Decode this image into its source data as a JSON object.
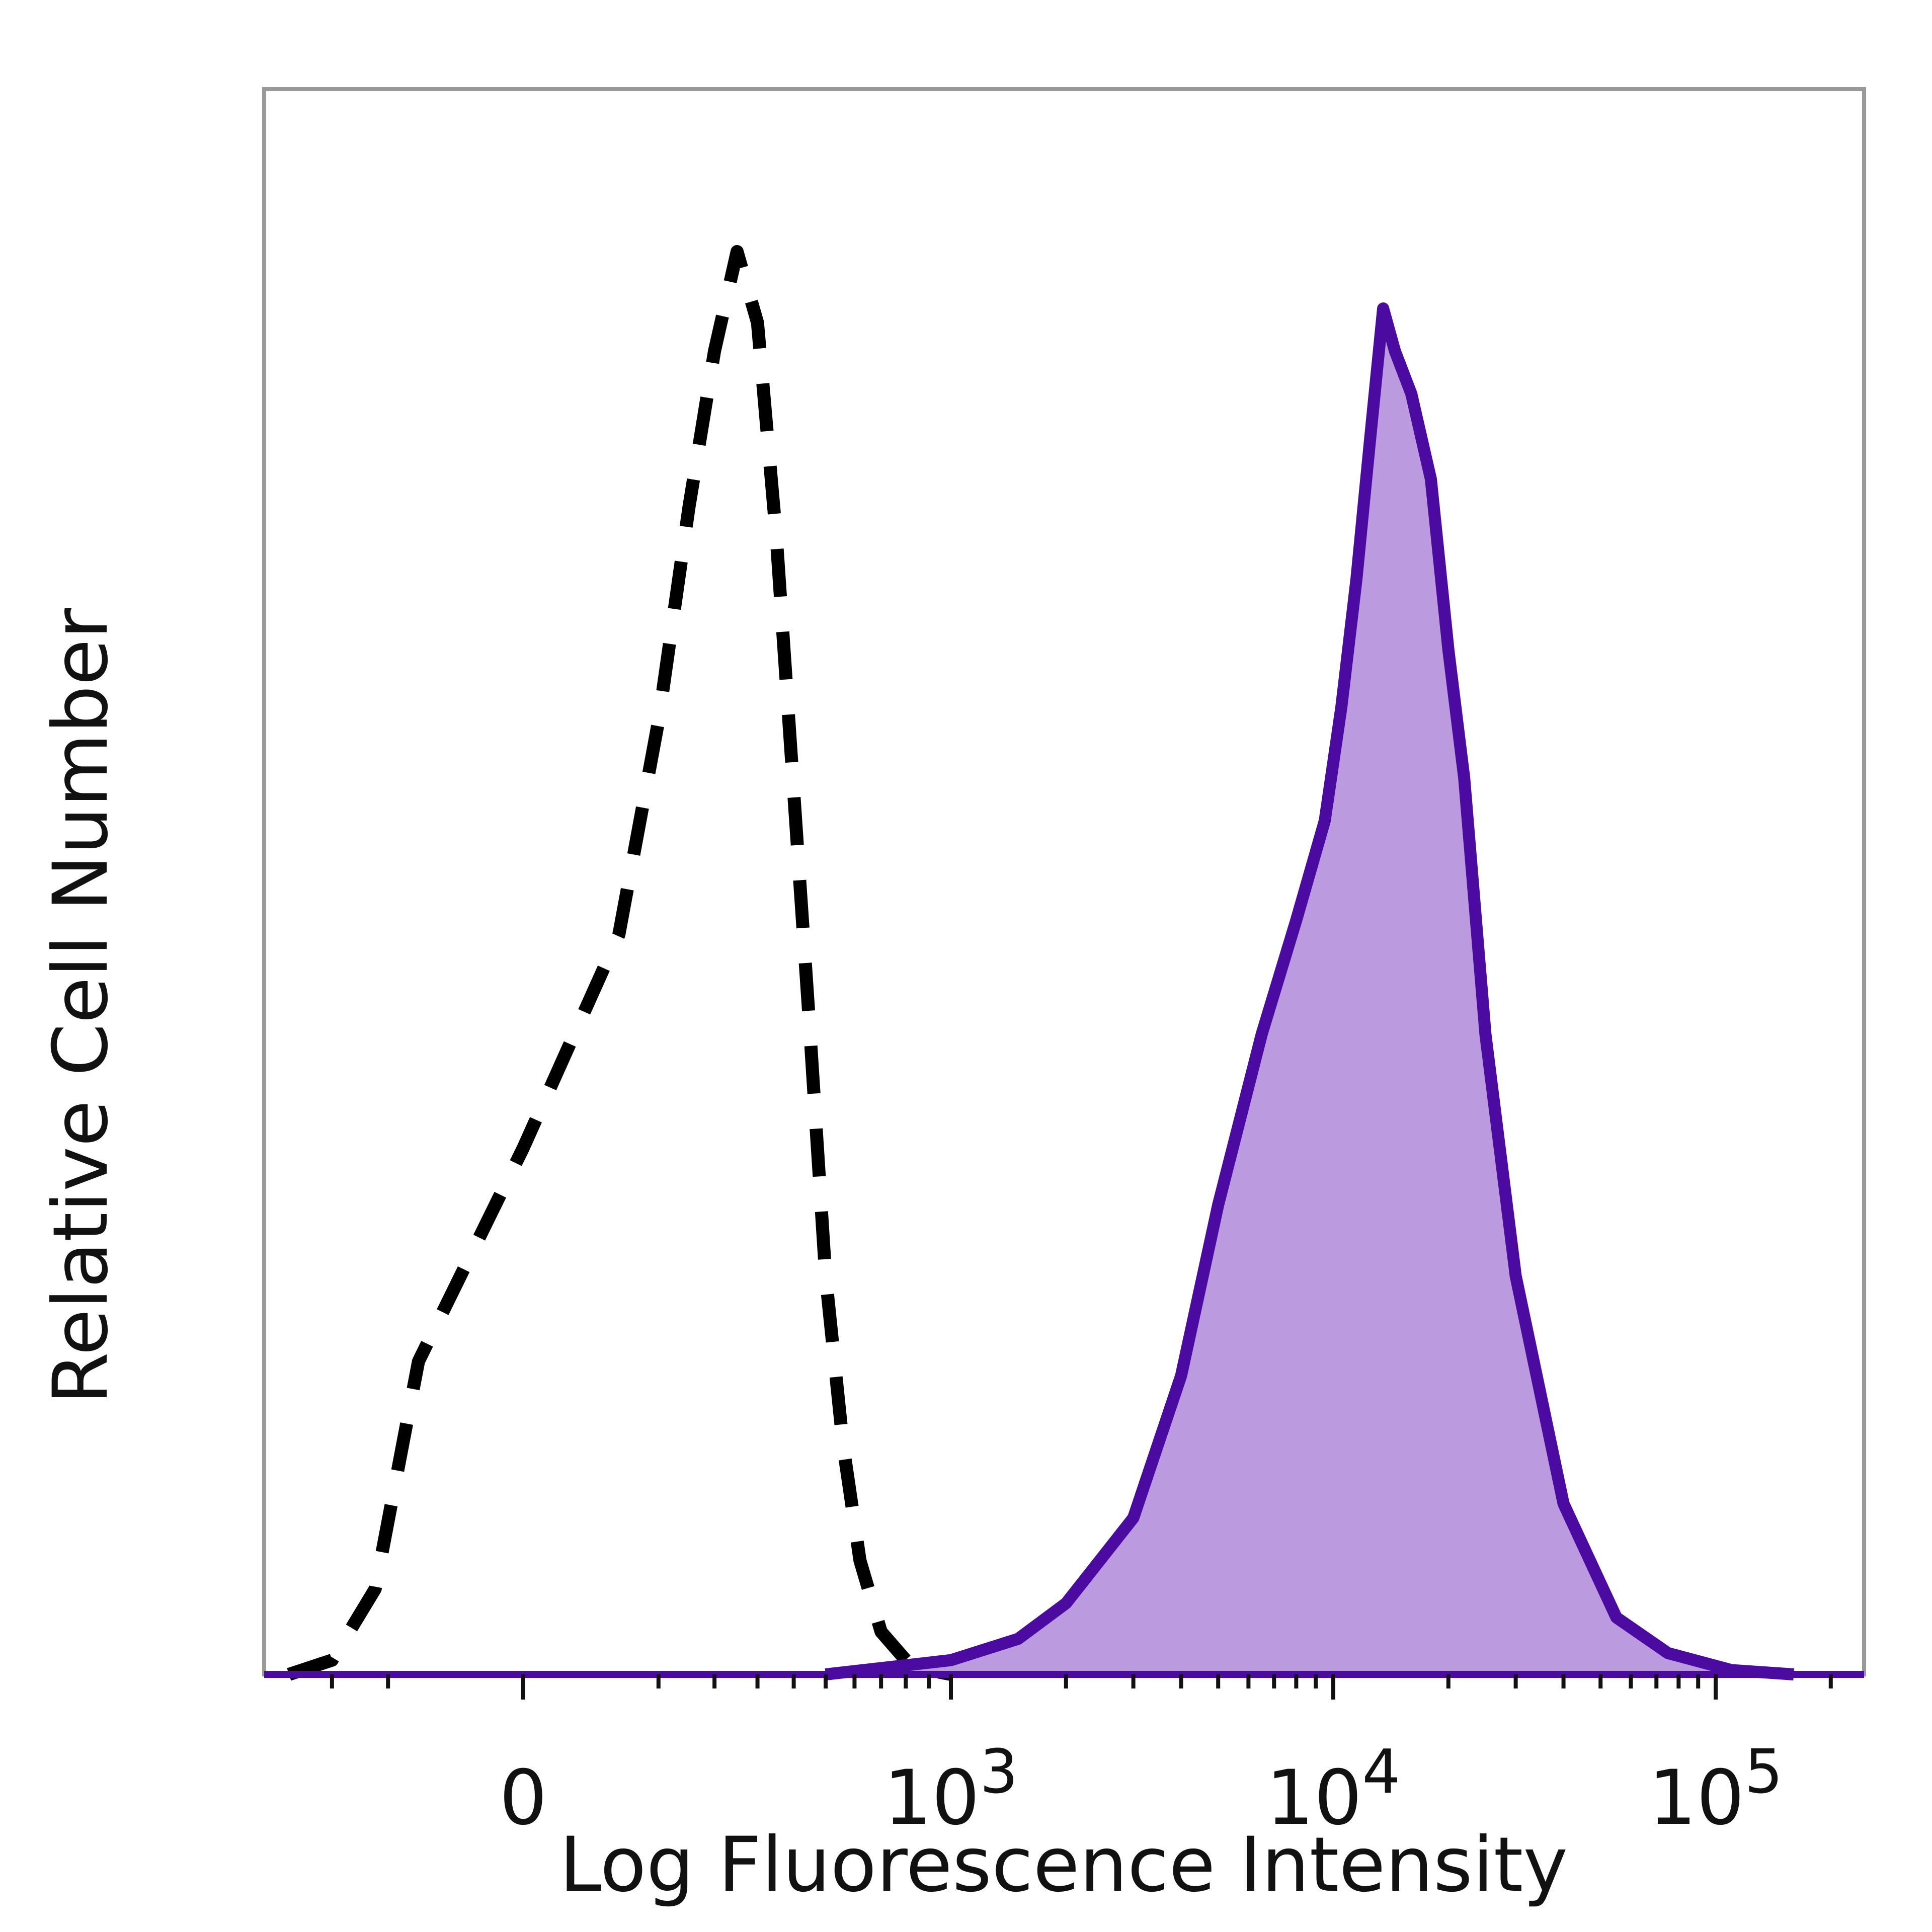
{
  "chart_data": {
    "type": "area",
    "xlabel": "Log Fluorescence Intensity",
    "ylabel": "Relative Cell Number",
    "x_scale": "biexponential",
    "x_ticks": [
      {
        "value": 0,
        "label": "0",
        "base": "0",
        "exp": ""
      },
      {
        "value": 1000,
        "label": "10^3",
        "base": "10",
        "exp": "3"
      },
      {
        "value": 10000,
        "label": "10^4",
        "base": "10",
        "exp": "4"
      },
      {
        "value": 100000,
        "label": "10^5",
        "base": "10",
        "exp": "5"
      }
    ],
    "xlim": [
      -300,
      250000
    ],
    "ylim": [
      0,
      100
    ],
    "y_ticks_labeled": false,
    "grid": false,
    "series": [
      {
        "style": "dashed",
        "filled": false,
        "color": "#000000",
        "x": [
          -300,
          -200,
          -120,
          -60,
          0,
          50,
          100,
          150,
          200,
          250,
          300,
          350,
          400,
          450,
          500,
          560,
          620,
          700,
          800,
          900,
          1000
        ],
        "y": [
          0,
          1,
          6,
          22,
          37,
          52,
          67,
          82,
          93,
          100,
          95,
          80,
          62,
          45,
          28,
          16,
          8,
          3,
          1,
          0.3,
          0
        ]
      },
      {
        "style": "solid",
        "filled": true,
        "color": "#4b0aa0",
        "fill_color": "#bb9ae0",
        "x": [
          500,
          1000,
          1500,
          2000,
          3000,
          4000,
          5000,
          6500,
          8000,
          9500,
          10500,
          11500,
          12500,
          13500,
          14500,
          16000,
          18000,
          20000,
          22000,
          25000,
          30000,
          40000,
          55000,
          75000,
          110000,
          160000
        ],
        "y": [
          0,
          1,
          2.5,
          5,
          11,
          21,
          33,
          45,
          53,
          60,
          68,
          77,
          87,
          96,
          93,
          90,
          84,
          72,
          63,
          45,
          28,
          12,
          4,
          1.5,
          0.3,
          0
        ]
      }
    ]
  },
  "colors": {
    "frame": "#999999",
    "baseline": "#4b0aa0",
    "fill": "#bb9ae0",
    "line": "#4b0aa0",
    "dashed": "#000000"
  }
}
